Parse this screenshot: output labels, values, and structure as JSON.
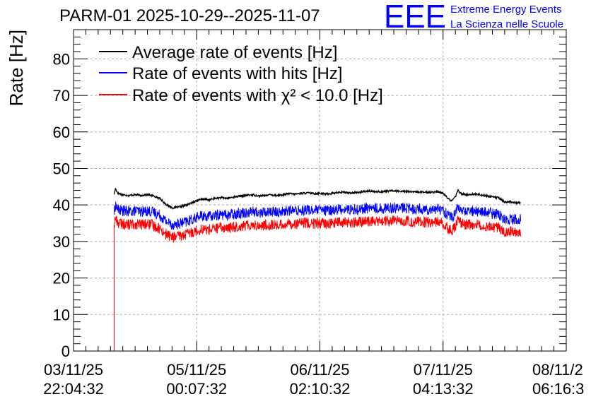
{
  "chart_data": {
    "type": "line",
    "title": "PARM-01 2025-10-29--2025-11-07",
    "ylabel": "Rate [Hz]",
    "xlabel": "",
    "ylim": [
      0,
      88
    ],
    "xlim": [
      0,
      4.0
    ],
    "x_tick_labels": [
      {
        "x": 0,
        "date": "03/11/25",
        "time": "22:04:32"
      },
      {
        "x": 1,
        "date": "05/11/25",
        "time": "00:07:32"
      },
      {
        "x": 2,
        "date": "06/11/25",
        "time": "02:10:32"
      },
      {
        "x": 3,
        "date": "07/11/25",
        "time": "04:13:32"
      },
      {
        "x": 4,
        "date": "08/11/2",
        "time": "06:16:3"
      }
    ],
    "y_ticks": [
      0,
      10,
      20,
      30,
      40,
      50,
      60,
      70,
      80
    ],
    "grid": true,
    "legend_position": "top-left",
    "series": [
      {
        "name": "Average rate of events [Hz]",
        "color": "#000000",
        "noise": 0.25,
        "x": [
          0.33,
          0.34,
          0.36,
          0.4,
          0.45,
          0.5,
          0.55,
          0.6,
          0.65,
          0.7,
          0.75,
          0.8,
          0.85,
          0.9,
          0.95,
          1.0,
          1.05,
          1.1,
          1.15,
          1.2,
          1.25,
          1.3,
          1.35,
          1.4,
          1.45,
          1.5,
          1.55,
          1.6,
          1.65,
          1.7,
          1.75,
          1.8,
          1.85,
          1.9,
          1.95,
          2.0,
          2.05,
          2.1,
          2.15,
          2.2,
          2.25,
          2.3,
          2.35,
          2.4,
          2.45,
          2.5,
          2.55,
          2.6,
          2.65,
          2.7,
          2.75,
          2.8,
          2.85,
          2.9,
          2.95,
          3.0,
          3.04,
          3.06,
          3.08,
          3.1,
          3.12,
          3.15,
          3.2,
          3.25,
          3.3,
          3.35,
          3.4,
          3.45,
          3.5,
          3.55,
          3.6,
          3.63
        ],
        "values": [
          43.0,
          44.5,
          43.2,
          42.8,
          42.6,
          42.8,
          42.6,
          42.8,
          42.5,
          41.8,
          40.2,
          39.2,
          39.4,
          39.8,
          40.4,
          41.2,
          41.6,
          41.4,
          41.8,
          42.0,
          41.8,
          42.2,
          42.4,
          42.6,
          42.8,
          42.5,
          42.6,
          42.8,
          42.6,
          42.8,
          43.1,
          43.0,
          43.2,
          43.3,
          43.1,
          43.2,
          43.0,
          43.2,
          43.4,
          43.5,
          43.3,
          43.4,
          43.6,
          43.8,
          43.7,
          43.6,
          43.8,
          43.9,
          43.7,
          43.8,
          43.5,
          43.6,
          43.4,
          43.5,
          43.6,
          43.2,
          41.8,
          41.2,
          41.5,
          42.2,
          44.0,
          43.0,
          42.8,
          43.0,
          42.8,
          42.5,
          42.2,
          42.0,
          40.8,
          40.8,
          40.6,
          40.6
        ]
      },
      {
        "name": "Rate of events with hits [Hz]",
        "color": "#0000ff",
        "noise": 1.5,
        "x": [
          0.33,
          0.34,
          0.36,
          0.4,
          0.45,
          0.5,
          0.55,
          0.6,
          0.65,
          0.7,
          0.75,
          0.8,
          0.85,
          0.9,
          0.95,
          1.0,
          1.05,
          1.1,
          1.15,
          1.2,
          1.25,
          1.3,
          1.35,
          1.4,
          1.45,
          1.5,
          1.55,
          1.6,
          1.65,
          1.7,
          1.75,
          1.8,
          1.85,
          1.9,
          1.95,
          2.0,
          2.05,
          2.1,
          2.15,
          2.2,
          2.25,
          2.3,
          2.35,
          2.4,
          2.45,
          2.5,
          2.55,
          2.6,
          2.65,
          2.7,
          2.75,
          2.8,
          2.85,
          2.9,
          2.95,
          3.0,
          3.04,
          3.06,
          3.08,
          3.1,
          3.12,
          3.15,
          3.2,
          3.25,
          3.3,
          3.35,
          3.4,
          3.45,
          3.5,
          3.55,
          3.6,
          3.63
        ],
        "values": [
          38.0,
          40.0,
          38.8,
          38.4,
          38.2,
          38.4,
          38.2,
          38.4,
          38.0,
          37.2,
          35.6,
          34.6,
          34.8,
          35.2,
          35.8,
          36.6,
          37.0,
          36.8,
          37.2,
          37.4,
          37.2,
          37.6,
          37.8,
          38.0,
          38.2,
          37.9,
          38.0,
          38.2,
          38.0,
          38.2,
          38.5,
          38.4,
          38.6,
          38.7,
          38.5,
          38.6,
          38.4,
          38.6,
          38.8,
          38.9,
          38.7,
          38.8,
          39.0,
          39.2,
          39.1,
          39.0,
          39.2,
          39.3,
          39.1,
          39.2,
          38.9,
          39.0,
          38.8,
          38.9,
          39.0,
          38.6,
          37.2,
          36.6,
          36.9,
          37.6,
          39.4,
          38.4,
          38.2,
          38.4,
          38.2,
          37.9,
          37.6,
          37.4,
          36.2,
          36.2,
          36.0,
          36.0
        ]
      },
      {
        "name": "Rate of events with χ² < 10.0 [Hz]",
        "color": "#ff0000",
        "noise": 1.5,
        "x": [
          0.33,
          0.34,
          0.36,
          0.4,
          0.45,
          0.5,
          0.55,
          0.6,
          0.65,
          0.7,
          0.75,
          0.8,
          0.85,
          0.9,
          0.95,
          1.0,
          1.05,
          1.1,
          1.15,
          1.2,
          1.25,
          1.3,
          1.35,
          1.4,
          1.45,
          1.5,
          1.55,
          1.6,
          1.65,
          1.7,
          1.75,
          1.8,
          1.85,
          1.9,
          1.95,
          2.0,
          2.05,
          2.1,
          2.15,
          2.2,
          2.25,
          2.3,
          2.35,
          2.4,
          2.45,
          2.5,
          2.55,
          2.6,
          2.65,
          2.7,
          2.75,
          2.8,
          2.85,
          2.9,
          2.95,
          3.0,
          3.04,
          3.06,
          3.08,
          3.1,
          3.12,
          3.15,
          3.2,
          3.25,
          3.3,
          3.35,
          3.4,
          3.45,
          3.5,
          3.55,
          3.6,
          3.63
        ],
        "values": [
          34.4,
          36.4,
          35.2,
          34.8,
          34.6,
          34.8,
          34.6,
          34.8,
          34.4,
          33.6,
          32.0,
          31.2,
          31.4,
          31.8,
          32.4,
          33.0,
          33.4,
          33.2,
          33.6,
          33.8,
          33.6,
          34.0,
          34.2,
          34.4,
          34.6,
          34.3,
          34.4,
          34.6,
          34.4,
          34.6,
          34.9,
          34.8,
          35.0,
          35.1,
          34.9,
          35.0,
          34.8,
          35.0,
          35.2,
          35.3,
          35.1,
          35.2,
          35.4,
          35.6,
          35.5,
          35.4,
          35.6,
          35.7,
          35.5,
          35.6,
          35.3,
          35.4,
          35.2,
          35.3,
          35.4,
          35.0,
          33.6,
          33.0,
          33.3,
          34.0,
          35.8,
          34.8,
          34.6,
          34.8,
          34.6,
          34.3,
          34.0,
          33.8,
          32.8,
          32.8,
          32.6,
          32.6
        ]
      }
    ]
  },
  "logo": {
    "text": "EEE",
    "line1": "Extreme Energy Events",
    "line2": "La Scienza nelle Scuole",
    "color": "#0000ff"
  }
}
